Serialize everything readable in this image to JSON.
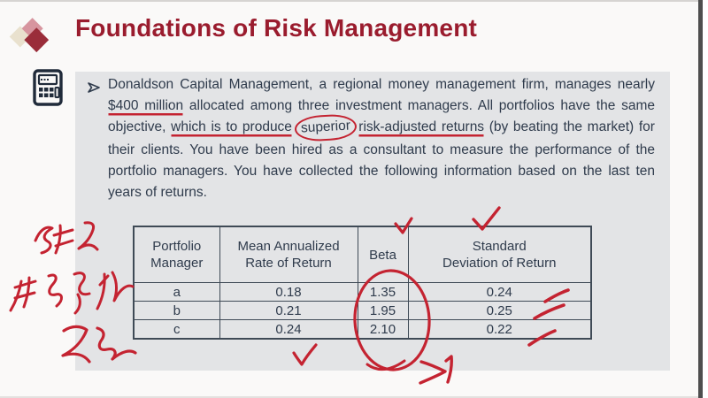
{
  "header": {
    "title": "Foundations of Risk Management"
  },
  "icons": {
    "logo": "diamond-logo",
    "sidebar": "calculator-icon",
    "bullet": "arrowhead-bullet"
  },
  "colors": {
    "title": "#9a1c2e",
    "body_text": "#2f3b4c",
    "panel": "#e3e4e6",
    "ink_red": "#c42331",
    "logo_maroon": "#9a2d3a",
    "logo_pink": "#d7959f",
    "logo_cream": "#e9e1ce",
    "right_edge_bar": "#4e4e4e",
    "table_border": "#3f4a56"
  },
  "content": {
    "paragraph_segments": [
      {
        "text": "Donaldson Capital Management, a regional money management firm, manages nearly ",
        "style": "plain"
      },
      {
        "text": "$400 million",
        "style": "red-underline"
      },
      {
        "text": " allocated among three investment managers. All portfolios have the same objective, ",
        "style": "plain"
      },
      {
        "text": "which is to produce",
        "style": "red-underline"
      },
      {
        "text": " ",
        "style": "plain"
      },
      {
        "text": "superior",
        "style": "red-circle"
      },
      {
        "text": " ",
        "style": "plain"
      },
      {
        "text": "risk-adjusted returns",
        "style": "red-underline"
      },
      {
        "text": " (by beating the market) for their clients. You have been hired as a consultant to measure the performance of the portfolio managers. You have collected the following information based on the last ten years of returns.",
        "style": "plain"
      }
    ]
  },
  "table": {
    "columns": [
      "Portfolio\nManager",
      "Mean Annualized\nRate of Return",
      "Beta",
      "Standard\nDeviation of Return"
    ],
    "rows": [
      [
        "a",
        "0.18",
        "1.35",
        "0.24"
      ],
      [
        "b",
        "0.21",
        "1.95",
        "0.25"
      ],
      [
        "c",
        "0.24",
        "2.10",
        "0.22"
      ]
    ]
  },
  "annotations": {
    "ink_color": "#c42331",
    "handwriting": [
      "承担了",
      "非系统性",
      "风险"
    ],
    "beta_note": ">1",
    "marks": [
      "checkmark-above-beta-column",
      "checkmark-above-standard-deviation-column",
      "ellipse-around-beta-values",
      "tick-after-0.24",
      "tick-after-0.25",
      "tick-after-0.22",
      "checkmark-below-table"
    ]
  }
}
